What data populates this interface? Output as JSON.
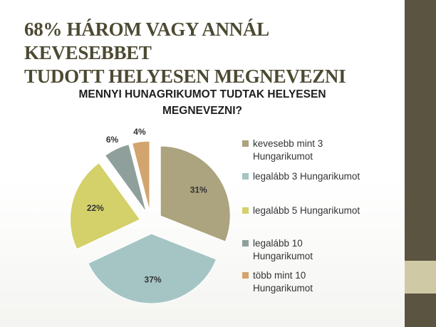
{
  "slide": {
    "title_line1": "68% HÁROM VAGY ANNÁL KEVESEBBET",
    "title_line2": "TUDOTT HELYESEN MEGNEVEZNI"
  },
  "colors": {
    "sidebar": "#5a5440",
    "sidebar_accent": "#cfc9a6",
    "title": "#4d4a33"
  },
  "chart_data": {
    "type": "pie",
    "title_line1": "MENNYI HUNAGRIKUMOT TUDTAK HELYESEN",
    "title_line2": "MEGNEVEZNI?",
    "legend_position": "right",
    "slices": [
      {
        "label_line1": "kevesebb mint 3",
        "label_line2": "Hungarikumot",
        "value": 31,
        "value_label": "31%",
        "color": "#aca37f"
      },
      {
        "label_line1": "legalább 3 Hungarikumot",
        "label_line2": "",
        "value": 37,
        "value_label": "37%",
        "color": "#a5c5c5"
      },
      {
        "label_line1": "legalább 5 Hungarikumot",
        "label_line2": "",
        "value": 22,
        "value_label": "22%",
        "color": "#d4d06a"
      },
      {
        "label_line1": "legalább 10",
        "label_line2": "Hungarikumot",
        "value": 6,
        "value_label": "6%",
        "color": "#8fa09c"
      },
      {
        "label_line1": "több mint 10",
        "label_line2": "Hungarikumot",
        "value": 4,
        "value_label": "4%",
        "color": "#d3a46e"
      }
    ]
  }
}
